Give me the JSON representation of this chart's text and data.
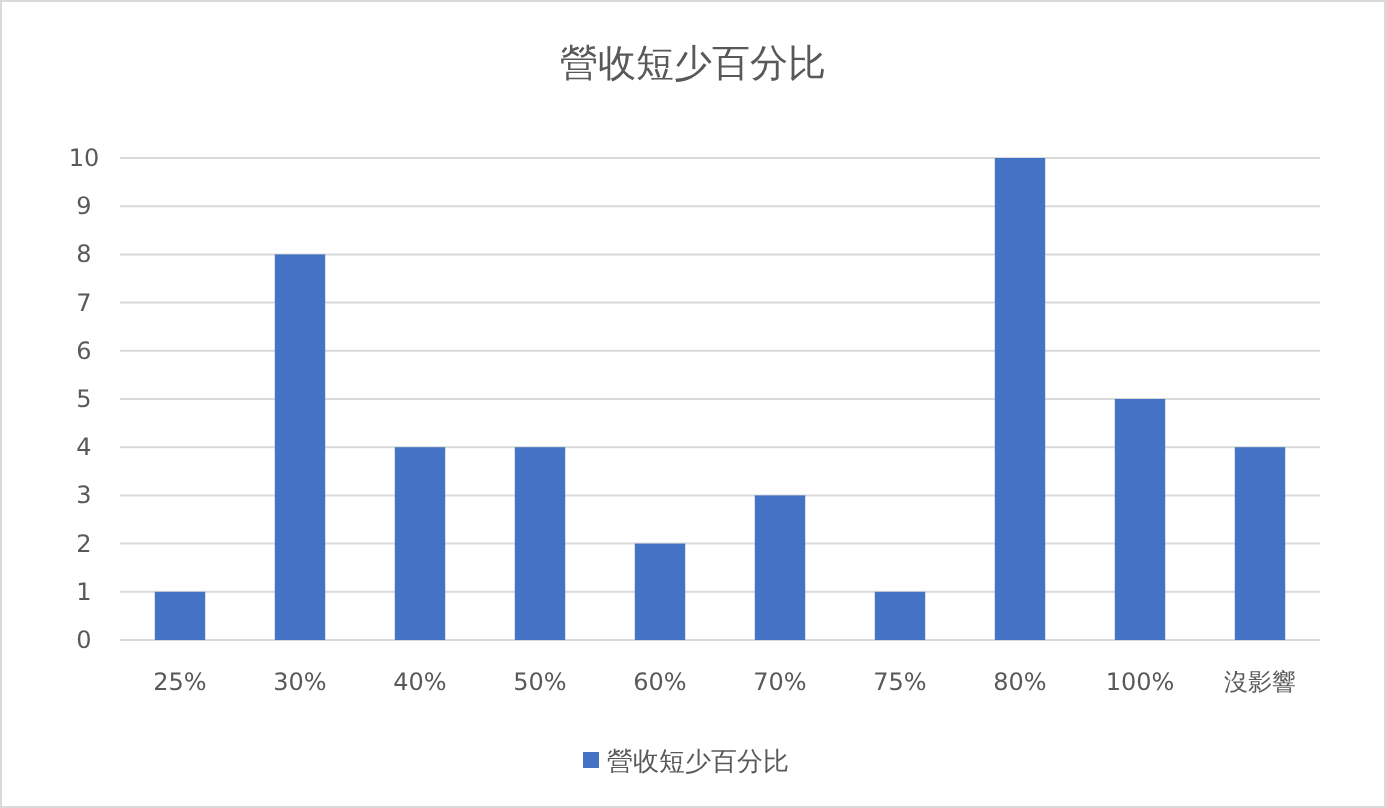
{
  "chart_data": {
    "type": "bar",
    "title": "營收短少百分比",
    "categories": [
      "25%",
      "30%",
      "40%",
      "50%",
      "60%",
      "70%",
      "75%",
      "80%",
      "100%",
      "沒影響"
    ],
    "series": [
      {
        "name": "營收短少百分比",
        "color": "#4472c4",
        "values": [
          1,
          8,
          4,
          4,
          2,
          3,
          1,
          10,
          5,
          4
        ]
      }
    ],
    "ylim": [
      0,
      10
    ],
    "yticks": [
      0,
      1,
      2,
      3,
      4,
      5,
      6,
      7,
      8,
      9,
      10
    ],
    "grid": "y",
    "legend": "bottom"
  }
}
